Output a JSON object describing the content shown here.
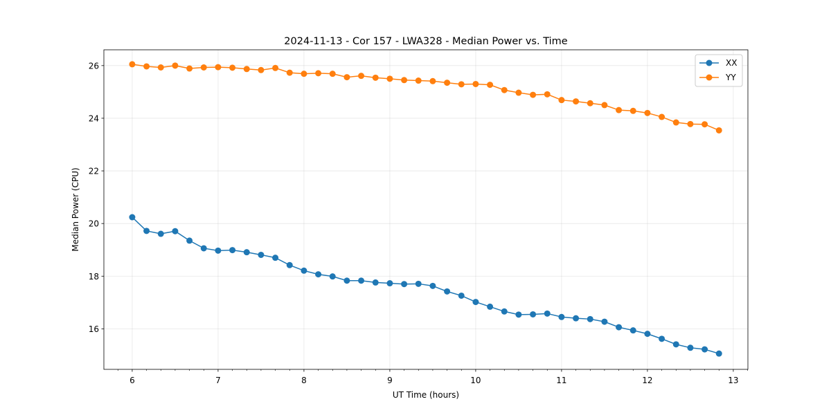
{
  "chart_data": {
    "type": "line",
    "title": "2024-11-13 - Cor 157 - LWA328 - Median Power vs. Time",
    "xlabel": "UT Time (hours)",
    "ylabel": "Median Power (CPU)",
    "xlim": [
      5.67,
      13.17
    ],
    "ylim": [
      14.46,
      26.6
    ],
    "xticks": [
      6,
      7,
      8,
      9,
      10,
      11,
      12,
      13
    ],
    "xtick_labels": [
      "6",
      "7",
      "8",
      "9",
      "10",
      "11",
      "12",
      "13"
    ],
    "yticks": [
      16,
      18,
      20,
      22,
      24,
      26
    ],
    "ytick_labels": [
      "16",
      "18",
      "20",
      "22",
      "24",
      "26"
    ],
    "grid": true,
    "legend_position": "top-right",
    "x": [
      6.0,
      6.1667,
      6.3333,
      6.5,
      6.6667,
      6.8333,
      7.0,
      7.1667,
      7.3333,
      7.5,
      7.6667,
      7.8333,
      8.0,
      8.1667,
      8.3333,
      8.5,
      8.6667,
      8.8333,
      9.0,
      9.1667,
      9.3333,
      9.5,
      9.6667,
      9.8333,
      10.0,
      10.1667,
      10.3333,
      10.5,
      10.6667,
      10.8333,
      11.0,
      11.1667,
      11.3333,
      11.5,
      11.6667,
      11.8333,
      12.0,
      12.1667,
      12.3333,
      12.5,
      12.6667,
      12.8333
    ],
    "series": [
      {
        "name": "XX",
        "color": "#1f77b4",
        "values": [
          20.24,
          19.72,
          19.61,
          19.71,
          19.35,
          19.06,
          18.97,
          18.99,
          18.91,
          18.81,
          18.7,
          18.42,
          18.21,
          18.07,
          17.99,
          17.83,
          17.83,
          17.76,
          17.73,
          17.7,
          17.71,
          17.63,
          17.42,
          17.26,
          17.02,
          16.84,
          16.66,
          16.54,
          16.55,
          16.58,
          16.45,
          16.4,
          16.37,
          16.27,
          16.06,
          15.94,
          15.81,
          15.62,
          15.41,
          15.28,
          15.22,
          15.06
        ]
      },
      {
        "name": "YY",
        "color": "#ff7f0e",
        "values": [
          26.05,
          25.97,
          25.93,
          26.0,
          25.89,
          25.93,
          25.94,
          25.92,
          25.87,
          25.83,
          25.91,
          25.73,
          25.69,
          25.71,
          25.69,
          25.56,
          25.61,
          25.54,
          25.5,
          25.45,
          25.43,
          25.41,
          25.35,
          25.29,
          25.3,
          25.27,
          25.07,
          24.97,
          24.89,
          24.91,
          24.69,
          24.64,
          24.57,
          24.5,
          24.31,
          24.28,
          24.2,
          24.05,
          23.84,
          23.78,
          23.77,
          23.54
        ]
      }
    ]
  }
}
